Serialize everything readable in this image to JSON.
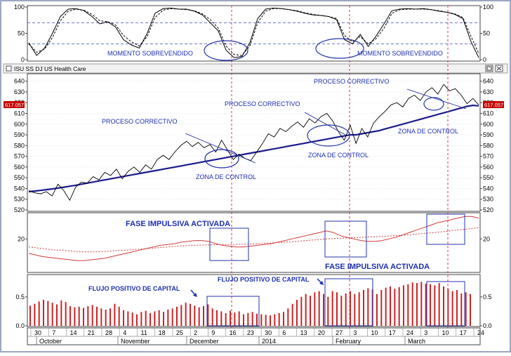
{
  "window_title": "ISU SS DJ US Health Care",
  "price_badge": "617.057",
  "colors": {
    "price_line": "#000000",
    "ma_line": "#1a1a8c",
    "annotation_blue": "#1c2fb0",
    "ema_red": "#d23a3a",
    "volume_red": "#cc2222",
    "guide_dash": "#d2304a",
    "ellipse": "#2233aa",
    "grid": "#b0b0b0",
    "badge_bg": "#c40000"
  },
  "chart_data": [
    {
      "type": "line",
      "panel": "momentum",
      "ylim": [
        0,
        100
      ],
      "y_ticks": [
        0,
        50,
        100
      ],
      "reference_lines": [
        30,
        70
      ],
      "series": [
        {
          "values": [
            32,
            8,
            22,
            50,
            82,
            96,
            97,
            93,
            82,
            68,
            72,
            62,
            38,
            28,
            22,
            50,
            88,
            97,
            98,
            96,
            96,
            92,
            85,
            70,
            55,
            18,
            4,
            6,
            32,
            78,
            96,
            98,
            97,
            95,
            92,
            88,
            85,
            84,
            82,
            76,
            38,
            30,
            48,
            25,
            45,
            68,
            93,
            96,
            97,
            96,
            97,
            95,
            92,
            90,
            86,
            78,
            35,
            4
          ]
        },
        {
          "values": [
            30,
            14,
            20,
            42,
            74,
            92,
            96,
            94,
            86,
            74,
            72,
            66,
            46,
            34,
            26,
            44,
            80,
            94,
            97,
            96,
            95,
            93,
            87,
            76,
            60,
            26,
            10,
            8,
            26,
            70,
            92,
            97,
            97,
            95,
            93,
            89,
            86,
            84,
            82,
            78,
            46,
            34,
            44,
            30,
            40,
            60,
            88,
            95,
            96,
            96,
            96,
            95,
            93,
            90,
            87,
            80,
            45,
            12
          ]
        }
      ],
      "annotations": [
        "MOMENTO SOBREVENDIDO",
        "MOMENTO SOBREVENDIDO"
      ]
    },
    {
      "type": "line",
      "panel": "price",
      "title": "ISU SS DJ US Health Care",
      "ylim": [
        520,
        645
      ],
      "y_ticks": [
        520,
        530,
        540,
        550,
        560,
        570,
        580,
        590,
        600,
        610,
        620,
        630,
        640
      ],
      "series": [
        {
          "values": [
            538,
            536,
            535,
            537,
            533,
            544,
            538,
            529,
            541,
            546,
            545,
            551,
            548,
            555,
            552,
            558,
            549,
            556,
            560,
            555,
            562,
            558,
            567,
            571,
            567,
            574,
            580,
            584,
            579,
            583,
            578,
            581,
            574,
            585,
            576,
            567,
            572,
            568,
            566,
            574,
            582,
            591,
            588,
            596,
            593,
            598,
            602,
            597,
            605,
            601,
            607,
            610,
            603,
            593,
            585,
            599,
            582,
            596,
            588,
            601,
            607,
            612,
            618,
            620,
            616,
            624,
            627,
            622,
            630,
            634,
            628,
            637,
            631,
            633,
            627,
            619,
            624,
            618
          ]
        },
        {
          "values": [
            537,
            537.6,
            538.2,
            538.9,
            539.6,
            540.4,
            541.2,
            542.1,
            543,
            544,
            545,
            546,
            547,
            548,
            549,
            550,
            551,
            552,
            553,
            554,
            555,
            556,
            557,
            558,
            559,
            560,
            561,
            562,
            563,
            564,
            565,
            566,
            567,
            568,
            569,
            570,
            571,
            572,
            573,
            574,
            575,
            576,
            577,
            578,
            579,
            580,
            581,
            582,
            583,
            584,
            585,
            586,
            587,
            588,
            589,
            590,
            590,
            591,
            592,
            593,
            594,
            595.5,
            597,
            598.5,
            600,
            601.5,
            603,
            604.5,
            606,
            607.5,
            609,
            610.5,
            612,
            613.5,
            615,
            616.5,
            617.5,
            617
          ]
        }
      ],
      "annotations": [
        "PROCESO CORRECTIVO",
        "PROCESO CORRECTIVO",
        "PROCESO CORRECTIVO",
        "ZONA DE CONTROL",
        "ZONA DE CONTROL",
        "ZONA DE CONTROL"
      ]
    },
    {
      "type": "line",
      "panel": "oscillator",
      "ylim": [
        0,
        35
      ],
      "y_ticks": [
        20
      ],
      "series": [
        {
          "values": [
            11,
            10,
            9,
            8.5,
            8,
            7.5,
            7,
            6.5,
            6.5,
            7,
            7.5,
            8,
            9,
            10,
            11,
            12,
            13,
            14,
            15,
            16,
            16.5,
            17,
            18,
            18.5,
            19,
            19,
            18.5,
            17,
            16,
            15.5,
            15,
            15,
            15.5,
            16,
            16.5,
            17,
            18,
            19,
            20,
            21,
            22,
            23,
            24,
            25,
            24,
            22,
            21,
            20,
            19,
            18.5,
            18.5,
            19,
            20,
            21,
            22.5,
            24,
            25.5,
            27,
            28.5,
            30,
            31,
            32,
            33,
            34,
            34,
            33
          ]
        },
        {
          "values": [
            15,
            14.5,
            14,
            13.5,
            13,
            13,
            12.5,
            12.2,
            12,
            12,
            12,
            12.2,
            12.5,
            12.8,
            13,
            13.3,
            13.6,
            14,
            14.3,
            14.6,
            15,
            15.3,
            15.6,
            15.9,
            16,
            16.2,
            16.3,
            16.4,
            16.5,
            16.5,
            16.6,
            16.7,
            16.8,
            17,
            17.2,
            17.5,
            17.8,
            18,
            18.3,
            18.6,
            19,
            19.3,
            19.6,
            20,
            20.2,
            20.4,
            20.6,
            20.8,
            21,
            21.2,
            21.4,
            21.6,
            21.8,
            22,
            22.3,
            22.6,
            23,
            23.4,
            23.8,
            24.2,
            24.6,
            25,
            25.5,
            26,
            26.5,
            27
          ]
        }
      ],
      "annotations": [
        "FASE IMPULSIVA ACTIVADA",
        "FASE IMPULSIVA ACTIVADA"
      ]
    },
    {
      "type": "bar",
      "panel": "flow",
      "ylim": [
        0,
        0.85
      ],
      "y_ticks": [
        0.0,
        0.5
      ],
      "values": [
        0.35,
        0.38,
        0.42,
        0.45,
        0.43,
        0.4,
        0.37,
        0.44,
        0.41,
        0.34,
        0.32,
        0.33,
        0.31,
        0.34,
        0.36,
        0.33,
        0.3,
        0.28,
        0.3,
        0.38,
        0.33,
        0.27,
        0.25,
        0.23,
        0.2,
        0.24,
        0.26,
        0.22,
        0.25,
        0.27,
        0.24,
        0.28,
        0.3,
        0.33,
        0.36,
        0.4,
        0.38,
        0.35,
        0.32,
        0.34,
        0.37,
        0.3,
        0.27,
        0.25,
        0.22,
        0.26,
        0.23,
        0.25,
        0.2,
        0.22,
        0.24,
        0.21,
        0.2,
        0.19,
        0.18,
        0.2,
        0.22,
        0.24,
        0.3,
        0.38,
        0.45,
        0.5,
        0.55,
        0.52,
        0.58,
        0.6,
        0.55,
        0.5,
        0.6,
        0.58,
        0.52,
        0.56,
        0.6,
        0.55,
        0.58,
        0.62,
        0.65,
        0.63,
        0.55,
        0.62,
        0.66,
        0.68,
        0.64,
        0.67,
        0.7,
        0.72,
        0.75,
        0.74,
        0.76,
        0.73,
        0.72,
        0.7,
        0.74,
        0.68,
        0.64,
        0.6,
        0.62,
        0.56,
        0.58,
        0.55
      ],
      "annotations": [
        "FLUJO POSITIVO DE CAPITAL",
        "FLUJO POSITIVO DE CAPITAL"
      ]
    }
  ],
  "x_axis": {
    "day_ticks": [
      "30",
      "7",
      "14",
      "21",
      "28",
      "4",
      "11",
      "18",
      "25",
      "2",
      "9",
      "16",
      "23",
      "30",
      "6",
      "13",
      "20",
      "27",
      "3",
      "10",
      "17",
      "24",
      "3",
      "10",
      "17",
      "24"
    ],
    "month_labels": [
      "October",
      "November",
      "December",
      "2014",
      "February",
      "March"
    ]
  },
  "annotations": {
    "mom_1": "MOMENTO SOBREVENDIDO",
    "mom_2": "MOMENTO SOBREVENDIDO",
    "pc_1": "PROCESO CORRECTIVO",
    "pc_2": "PROCESO CORRECTIVO",
    "pc_3": "PROCESO CORRECTIVO",
    "zc_1": "ZONA DE CONTROL",
    "zc_2": "ZONA DE CONTROL",
    "zc_3": "ZONA DE CONTROL",
    "fase_1": "FASE IMPULSIVA ACTIVADA",
    "fase_2": "FASE IMPULSIVA ACTIVADA",
    "flujo_1": "FLUJO POSITIVO DE CAPITAL",
    "flujo_2": "FLUJO POSITIVO DE CAPITAL"
  },
  "window_controls": {
    "restore_icon": "restore-icon",
    "close_icon": "close-icon"
  }
}
